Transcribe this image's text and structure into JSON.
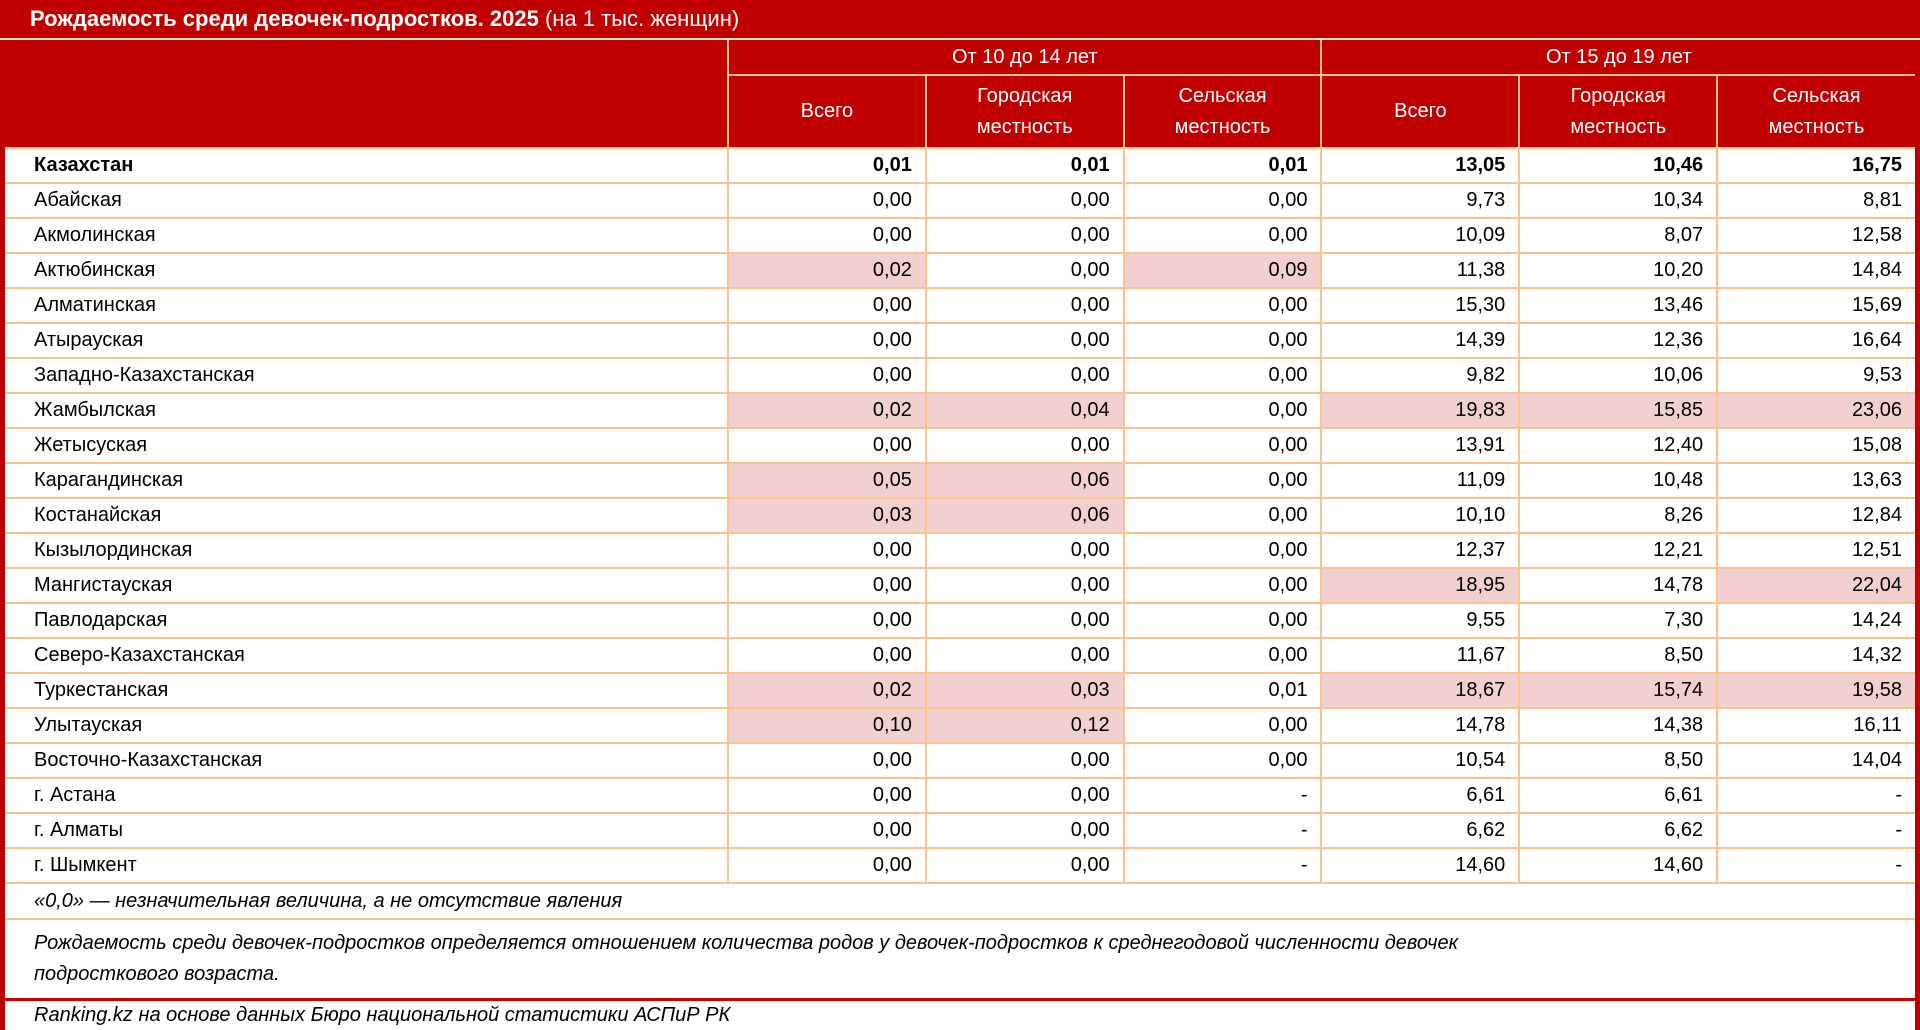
{
  "title": {
    "main": "Рождаемость среди девочек-подростков. 2025",
    "suffix": " (на 1 тыс. женщин)"
  },
  "chart_data": {
    "type": "table",
    "title": "Рождаемость среди девочек-подростков. 2025 (на 1 тыс. женщин)",
    "column_groups": [
      "От 10 до 14 лет",
      "От 15 до 19 лет"
    ],
    "columns": [
      "Всего",
      "Городская местность",
      "Сельская местность",
      "Всего",
      "Городская местность",
      "Сельская местность"
    ],
    "missing_marker": "-",
    "rows": [
      {
        "region": "Казахстан",
        "bold": true,
        "values": [
          "0,01",
          "0,01",
          "0,01",
          "13,05",
          "10,46",
          "16,75"
        ]
      },
      {
        "region": "Абайская",
        "values": [
          "0,00",
          "0,00",
          "0,00",
          "9,73",
          "10,34",
          "8,81"
        ]
      },
      {
        "region": "Акмолинская",
        "values": [
          "0,00",
          "0,00",
          "0,00",
          "10,09",
          "8,07",
          "12,58"
        ]
      },
      {
        "region": "Актюбинская",
        "values": [
          "0,02",
          "0,00",
          "0,09",
          "11,38",
          "10,20",
          "14,84"
        ],
        "highlights": [
          true,
          false,
          true,
          false,
          false,
          false
        ]
      },
      {
        "region": "Алматинская",
        "values": [
          "0,00",
          "0,00",
          "0,00",
          "15,30",
          "13,46",
          "15,69"
        ]
      },
      {
        "region": "Атырауская",
        "values": [
          "0,00",
          "0,00",
          "0,00",
          "14,39",
          "12,36",
          "16,64"
        ]
      },
      {
        "region": "Западно-Казахстанская",
        "values": [
          "0,00",
          "0,00",
          "0,00",
          "9,82",
          "10,06",
          "9,53"
        ]
      },
      {
        "region": "Жамбылская",
        "values": [
          "0,02",
          "0,04",
          "0,00",
          "19,83",
          "15,85",
          "23,06"
        ],
        "highlights": [
          true,
          true,
          false,
          true,
          true,
          true
        ]
      },
      {
        "region": "Жетысуская",
        "values": [
          "0,00",
          "0,00",
          "0,00",
          "13,91",
          "12,40",
          "15,08"
        ]
      },
      {
        "region": "Карагандинская",
        "values": [
          "0,05",
          "0,06",
          "0,00",
          "11,09",
          "10,48",
          "13,63"
        ],
        "highlights": [
          true,
          true,
          false,
          false,
          false,
          false
        ]
      },
      {
        "region": "Костанайская",
        "values": [
          "0,03",
          "0,06",
          "0,00",
          "10,10",
          "8,26",
          "12,84"
        ],
        "highlights": [
          true,
          true,
          false,
          false,
          false,
          false
        ]
      },
      {
        "region": "Кызылординская",
        "values": [
          "0,00",
          "0,00",
          "0,00",
          "12,37",
          "12,21",
          "12,51"
        ]
      },
      {
        "region": "Мангистауская",
        "values": [
          "0,00",
          "0,00",
          "0,00",
          "18,95",
          "14,78",
          "22,04"
        ],
        "highlights": [
          false,
          false,
          false,
          true,
          false,
          true
        ]
      },
      {
        "region": "Павлодарская",
        "values": [
          "0,00",
          "0,00",
          "0,00",
          "9,55",
          "7,30",
          "14,24"
        ]
      },
      {
        "region": "Северо-Казахстанская",
        "values": [
          "0,00",
          "0,00",
          "0,00",
          "11,67",
          "8,50",
          "14,32"
        ]
      },
      {
        "region": "Туркестанская",
        "values": [
          "0,02",
          "0,03",
          "0,01",
          "18,67",
          "15,74",
          "19,58"
        ],
        "highlights": [
          true,
          true,
          false,
          true,
          true,
          true
        ]
      },
      {
        "region": "Улытауская",
        "values": [
          "0,10",
          "0,12",
          "0,00",
          "14,78",
          "14,38",
          "16,11"
        ],
        "highlights": [
          true,
          true,
          false,
          false,
          false,
          false
        ]
      },
      {
        "region": "Восточно-Казахстанская",
        "values": [
          "0,00",
          "0,00",
          "0,00",
          "10,54",
          "8,50",
          "14,04"
        ]
      },
      {
        "region": "г. Астана",
        "values": [
          "0,00",
          "0,00",
          "-",
          "6,61",
          "6,61",
          "-"
        ]
      },
      {
        "region": "г. Алматы",
        "values": [
          "0,00",
          "0,00",
          "-",
          "6,62",
          "6,62",
          "-"
        ]
      },
      {
        "region": "г. Шымкент",
        "values": [
          "0,00",
          "0,00",
          "-",
          "14,60",
          "14,60",
          "-"
        ]
      }
    ]
  },
  "footnotes": [
    "«0,0» — незначительная величина, а не отсутствие явления",
    "Рождаемость среди девочек-подростков определяется отношением количества родов у девочек-подростков к среднегодовой численности девочек подросткового возраста.",
    "Ranking.kz на основе данных Бюро национальной статистики АСПиР РК"
  ],
  "colors": {
    "header_red": "#c00000",
    "border_orange": "#f9c48e",
    "highlight_pink": "#f3d0d0"
  }
}
